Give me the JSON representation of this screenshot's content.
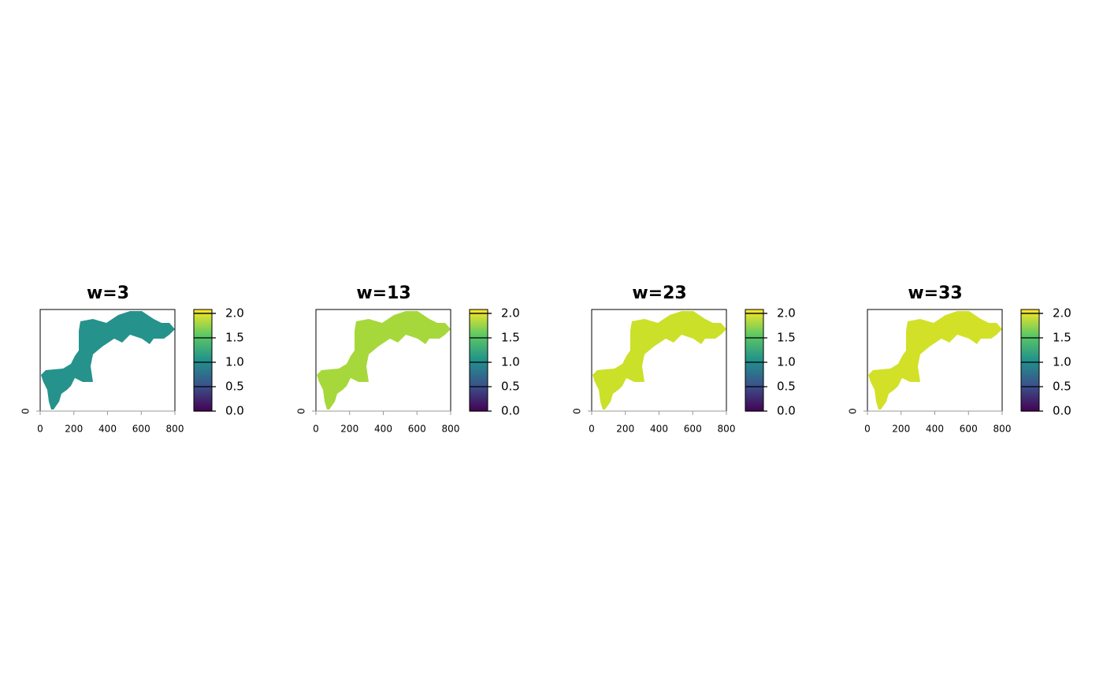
{
  "chart_data": [
    {
      "type": "raster",
      "title": "w=3",
      "color": "#26928c",
      "xlim": [
        0,
        800
      ],
      "xticks": [
        0,
        200,
        400,
        600,
        800
      ],
      "ylim": [
        0,
        600
      ],
      "yticks": [
        0
      ],
      "clim": [
        0,
        2.08
      ],
      "cticks": [
        {
          "value": 0,
          "label": "0.0"
        },
        0.5,
        {
          "value": 1,
          "label": "1.0"
        },
        1.5,
        {
          "value": 2,
          "label": "2.0"
        }
      ],
      "colormap": [
        "#440154",
        "#3b528b",
        "#21918c",
        "#5ec962",
        "#fde725"
      ]
    },
    {
      "type": "raster",
      "title": "w=13",
      "color": "#a6d83c",
      "xlim": [
        0,
        800
      ],
      "xticks": [
        0,
        200,
        400,
        600,
        800
      ],
      "ylim": [
        0,
        600
      ],
      "yticks": [
        0
      ],
      "clim": [
        0,
        2.08
      ],
      "cticks": [
        {
          "value": 0,
          "label": "0.0"
        },
        0.5,
        {
          "value": 1,
          "label": "1.0"
        },
        1.5,
        {
          "value": 2,
          "label": "2.0"
        }
      ],
      "colormap": [
        "#440154",
        "#3b528b",
        "#21918c",
        "#5ec962",
        "#fde725"
      ]
    },
    {
      "type": "raster",
      "title": "w=23",
      "color": "#cbe029",
      "xlim": [
        0,
        800
      ],
      "xticks": [
        0,
        200,
        400,
        600,
        800
      ],
      "ylim": [
        0,
        600
      ],
      "yticks": [
        0
      ],
      "clim": [
        0,
        2.08
      ],
      "cticks": [
        {
          "value": 0,
          "label": "0.0"
        },
        0.5,
        {
          "value": 1,
          "label": "1.0"
        },
        1.5,
        {
          "value": 2,
          "label": "2.0"
        }
      ],
      "colormap": [
        "#440154",
        "#3b528b",
        "#21918c",
        "#5ec962",
        "#fde725"
      ]
    },
    {
      "type": "raster",
      "title": "w=33",
      "color": "#d2e128",
      "xlim": [
        0,
        800
      ],
      "xticks": [
        0,
        200,
        400,
        600,
        800
      ],
      "ylim": [
        0,
        600
      ],
      "yticks": [
        0
      ],
      "clim": [
        0,
        2.08
      ],
      "cticks": [
        {
          "value": 0,
          "label": "0.0"
        },
        0.5,
        {
          "value": 1,
          "label": "1.0"
        },
        1.5,
        {
          "value": 2,
          "label": "2.0"
        }
      ],
      "colormap": [
        "#440154",
        "#3b528b",
        "#21918c",
        "#5ec962",
        "#fde725"
      ]
    }
  ]
}
